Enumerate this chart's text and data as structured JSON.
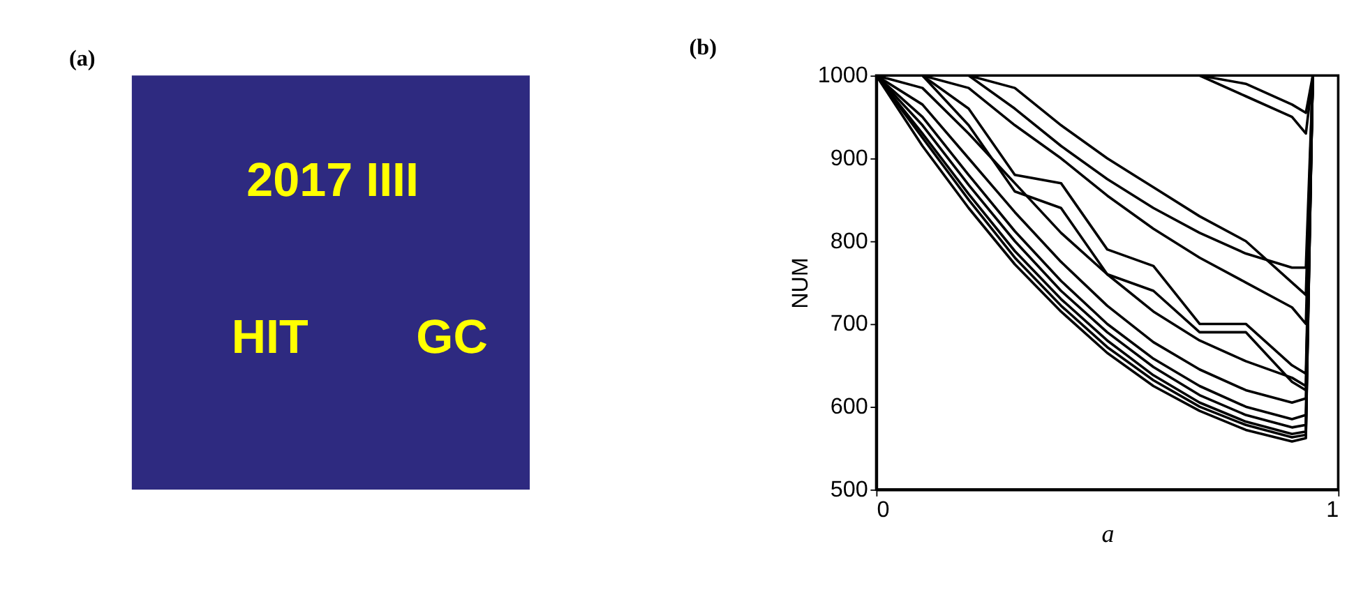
{
  "chart_data": [
    {
      "type": "other",
      "title": "(a)",
      "color": "#ffff00",
      "annotations": [
        "2017 IIII",
        "HIT",
        "GC"
      ]
    },
    {
      "type": "line",
      "title": "(b)",
      "xlabel": "a",
      "ylabel": "NUM",
      "xlim": [
        0,
        1
      ],
      "xticks": [
        0,
        1
      ],
      "ylim": [
        500,
        1000
      ],
      "yticks": [
        500,
        600,
        700,
        800,
        900,
        1000
      ],
      "grid": false,
      "legend": false,
      "line_style": "solid",
      "x": [
        0,
        0.1,
        0.2,
        0.3,
        0.4,
        0.5,
        0.6,
        0.7,
        0.8,
        0.9,
        0.93,
        0.945
      ],
      "series": [
        {
          "color": "#000000",
          "values": [
            1000,
            915,
            840,
            772,
            715,
            665,
            625,
            595,
            572,
            558,
            562,
            1000
          ]
        },
        {
          "color": "#000000",
          "values": [
            1000,
            925,
            850,
            780,
            722,
            672,
            632,
            600,
            578,
            563,
            566,
            1000
          ]
        },
        {
          "color": "#000000",
          "values": [
            1000,
            930,
            857,
            788,
            730,
            680,
            638,
            605,
            582,
            567,
            570,
            1000
          ]
        },
        {
          "color": "#000000",
          "values": [
            1000,
            940,
            868,
            800,
            740,
            690,
            648,
            614,
            590,
            575,
            578,
            1000
          ]
        },
        {
          "color": "#000000",
          "values": [
            1000,
            950,
            880,
            812,
            752,
            700,
            658,
            625,
            600,
            585,
            590,
            1000
          ]
        },
        {
          "color": "#000000",
          "values": [
            1000,
            965,
            900,
            835,
            775,
            722,
            678,
            645,
            620,
            605,
            610,
            1000
          ]
        },
        {
          "color": "#000000",
          "values": [
            1000,
            985,
            930,
            870,
            810,
            760,
            715,
            680,
            655,
            635,
            625,
            1000
          ]
        },
        {
          "color": "#000000",
          "values": [
            1000,
            1000,
            940,
            860,
            840,
            760,
            740,
            690,
            690,
            630,
            620,
            1000
          ]
        },
        {
          "color": "#000000",
          "values": [
            1000,
            1000,
            960,
            880,
            870,
            790,
            770,
            700,
            700,
            650,
            640,
            1000
          ]
        },
        {
          "color": "#000000",
          "values": [
            1000,
            1000,
            985,
            940,
            900,
            855,
            815,
            780,
            750,
            720,
            700,
            1000
          ]
        },
        {
          "color": "#000000",
          "values": [
            1000,
            1000,
            1000,
            960,
            915,
            875,
            840,
            810,
            785,
            768,
            768,
            1000
          ]
        },
        {
          "color": "#000000",
          "values": [
            1000,
            1000,
            1000,
            985,
            940,
            900,
            865,
            830,
            800,
            750,
            735,
            1000
          ]
        },
        {
          "color": "#000000",
          "values": [
            1000,
            1000,
            1000,
            1000,
            1000,
            1000,
            1000,
            1000,
            975,
            950,
            930,
            1000
          ]
        },
        {
          "color": "#000000",
          "values": [
            1000,
            1000,
            1000,
            1000,
            1000,
            1000,
            1000,
            1000,
            990,
            965,
            955,
            1000
          ]
        }
      ]
    }
  ]
}
